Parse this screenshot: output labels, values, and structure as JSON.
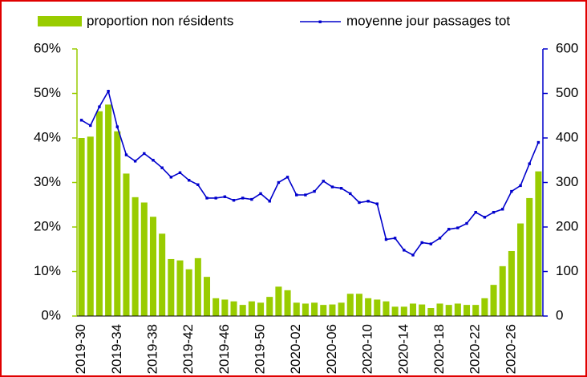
{
  "chart_data": {
    "type": "bar-line",
    "categories": [
      "2019-30",
      null,
      null,
      null,
      "2019-34",
      null,
      null,
      null,
      "2019-38",
      null,
      null,
      null,
      "2019-42",
      null,
      null,
      null,
      "2019-46",
      null,
      null,
      null,
      "2019-50",
      null,
      null,
      null,
      "2020-02",
      null,
      null,
      null,
      "2020-06",
      null,
      null,
      null,
      "2020-10",
      null,
      null,
      null,
      "2020-14",
      null,
      null,
      null,
      "2020-18",
      null,
      null,
      null,
      "2020-22",
      null,
      null,
      null,
      "2020-26",
      null,
      null,
      null
    ],
    "series": [
      {
        "name": "proportion non résidents",
        "type": "bar",
        "color": "#99cc00",
        "values": [
          40,
          40.3,
          46,
          47.5,
          41.5,
          32,
          26.7,
          25.5,
          22.3,
          18.5,
          12.8,
          12.5,
          10.5,
          13,
          8.8,
          4,
          3.7,
          3.3,
          2.5,
          3.3,
          3,
          4.3,
          6.6,
          5.8,
          3,
          2.8,
          3,
          2.5,
          2.6,
          3,
          5,
          5,
          4,
          3.7,
          3.3,
          2.1,
          2.1,
          2.8,
          2.6,
          1.8,
          2.8,
          2.5,
          2.8,
          2.5,
          2.5,
          4,
          7,
          11.2,
          14.6,
          20.8,
          26.5,
          32.5
        ]
      },
      {
        "name": "moyenne jour passages tot",
        "type": "line",
        "axis": "y2",
        "color": "#0000cc",
        "values": [
          440,
          428,
          470,
          505,
          425,
          362,
          348,
          365,
          350,
          333,
          312,
          322,
          305,
          295,
          265,
          265,
          268,
          260,
          265,
          262,
          275,
          258,
          300,
          312,
          272,
          272,
          280,
          303,
          290,
          287,
          275,
          255,
          258,
          252,
          172,
          175,
          148,
          137,
          165,
          162,
          175,
          195,
          198,
          208,
          233,
          222,
          233,
          240,
          280,
          293,
          342,
          390
        ]
      }
    ],
    "ylim": [
      0,
      60
    ],
    "yticks": [
      {
        "value": 0,
        "label": "0%"
      },
      {
        "value": 10,
        "label": "10%"
      },
      {
        "value": 20,
        "label": "20%"
      },
      {
        "value": 30,
        "label": "30%"
      },
      {
        "value": 40,
        "label": "40%"
      },
      {
        "value": 50,
        "label": "50%"
      },
      {
        "value": 60,
        "label": "60%"
      }
    ],
    "y2lim": [
      0,
      600
    ],
    "y2ticks": [
      0,
      100,
      200,
      300,
      400,
      500,
      600
    ],
    "legend": "top"
  }
}
